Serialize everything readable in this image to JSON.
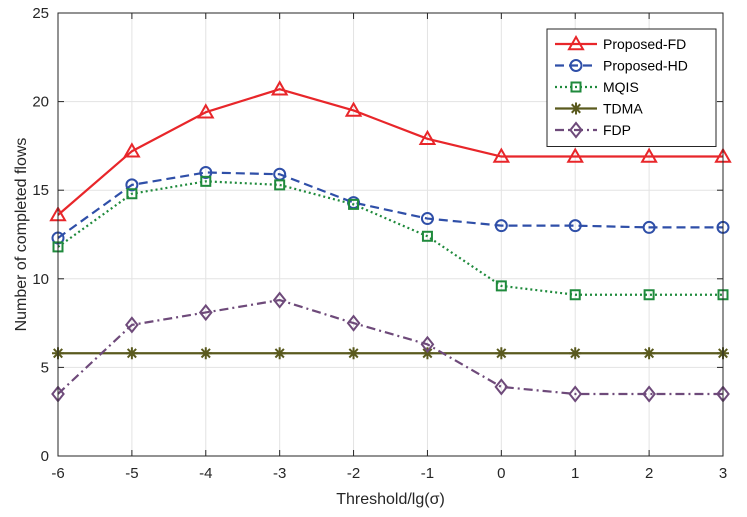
{
  "chart_data": {
    "type": "line",
    "title": "",
    "xlabel": "Threshold/lg(σ)",
    "ylabel": "Number of completed flows",
    "x": [
      -6,
      -5,
      -4,
      -3,
      -2,
      -1,
      0,
      1,
      2,
      3
    ],
    "xlim": [
      -6,
      3
    ],
    "ylim": [
      0,
      25
    ],
    "xticks": [
      "-6",
      "-5",
      "-4",
      "-3",
      "-2",
      "-1",
      "0",
      "1",
      "2",
      "3"
    ],
    "yticks": [
      "0",
      "5",
      "10",
      "15",
      "20",
      "25"
    ],
    "grid": true,
    "legend_position": "top-right",
    "series": [
      {
        "name": "Proposed-FD",
        "color": "#e8262a",
        "line": "solid",
        "marker": "triangle",
        "values": [
          13.6,
          17.2,
          19.4,
          20.7,
          19.5,
          17.9,
          16.9,
          16.9,
          16.9,
          16.9
        ]
      },
      {
        "name": "Proposed-HD",
        "color": "#2f4fa8",
        "line": "dashed",
        "marker": "circle",
        "values": [
          12.3,
          15.3,
          16.0,
          15.9,
          14.3,
          13.4,
          13.0,
          13.0,
          12.9,
          12.9
        ]
      },
      {
        "name": "MQIS",
        "color": "#1f8a3c",
        "line": "dotted",
        "marker": "square",
        "values": [
          11.8,
          14.8,
          15.5,
          15.3,
          14.2,
          12.4,
          9.6,
          9.1,
          9.1,
          9.1
        ]
      },
      {
        "name": "TDMA",
        "color": "#5a5a1e",
        "line": "solid",
        "marker": "asterisk",
        "values": [
          5.8,
          5.8,
          5.8,
          5.8,
          5.8,
          5.8,
          5.8,
          5.8,
          5.8,
          5.8
        ]
      },
      {
        "name": "FDP",
        "color": "#6e4a7a",
        "line": "dashdot",
        "marker": "diamond",
        "values": [
          3.5,
          7.4,
          8.1,
          8.8,
          7.5,
          6.3,
          3.9,
          3.5,
          3.5,
          3.5
        ]
      }
    ]
  }
}
